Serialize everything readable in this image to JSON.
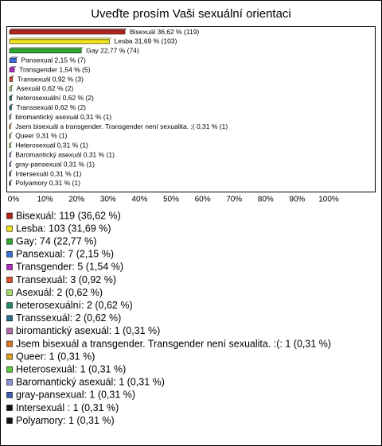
{
  "chart_data": {
    "type": "bar",
    "orientation": "horizontal",
    "title": "Uveďte prosím Vaši sexuální orientaci",
    "values": [
      36.62,
      31.69,
      22.77,
      2.15,
      1.54,
      0.92,
      0.62,
      0.62,
      0.62,
      0.31,
      0.31,
      0.31,
      0.31,
      0.31,
      0.31,
      0.31,
      0.31
    ],
    "value_labels": [
      "Bisexuál 36,62 % (119)",
      "Lesba 31,69 % (103)",
      "Gay 22,77 % (74)",
      "Pansexual 2,15 % (7)",
      "Transgender 1,54 % (5)",
      "Transexuál 0,92 % (3)",
      "Asexuál 0,62 % (2)",
      "heterosexuální 0,62 % (2)",
      "Transsexuál 0,62 % (2)",
      "biromantický asexuál 0,31 % (1)",
      "Jsem bisexuál a transgender. Transgender není sexualita. :( 0,31 % (1)",
      "Queer 0,31 % (1)",
      "Heterosexuál 0,31 % (1)",
      "Baromantický asexuál 0,31 % (1)",
      "gray-pansexual 0,31 % (1)",
      "Intersexuál  0,31 % (1)",
      "Polyamory 0,31 % (1)"
    ],
    "legend_labels": [
      "Bisexuál: 119 (36,62 %)",
      "Lesba: 103 (31,69 %)",
      "Gay: 74 (22,77 %)",
      "Pansexual: 7 (2,15 %)",
      "Transgender: 5 (1,54 %)",
      "Transexuál: 3 (0,92 %)",
      "Asexuál: 2 (0,62 %)",
      "heterosexuální: 2 (0,62 %)",
      "Transsexuál: 2 (0,62 %)",
      "biromantický asexuál: 1 (0,31 %)",
      "Jsem bisexuál a transgender. Transgender není sexualita. :(: 1 (0,31 %)",
      "Queer: 1 (0,31 %)",
      "Heterosexuál: 1 (0,31 %)",
      "Baromantický asexuál: 1 (0,31 %)",
      "gray-pansexual: 1 (0,31 %)",
      "Intersexuál : 1 (0,31 %)",
      "Polyamory: 1 (0,31 %)"
    ],
    "colors": [
      "#b3261e",
      "#f2e41c",
      "#2eaa2e",
      "#3b6fd6",
      "#b02fc0",
      "#e0502a",
      "#a8dc6a",
      "#27876a",
      "#2a6f8e",
      "#b86aa8",
      "#e07520",
      "#e0a21e",
      "#5ccf3c",
      "#8a95e0",
      "#3f5fae",
      "#111111",
      "#111111"
    ],
    "xlim": [
      0,
      100
    ],
    "xticks": [
      {
        "value": 0,
        "label": "0%"
      },
      {
        "value": 10,
        "label": "10%"
      },
      {
        "value": 20,
        "label": "20%"
      },
      {
        "value": 30,
        "label": "30%"
      },
      {
        "value": 40,
        "label": "40%"
      },
      {
        "value": 50,
        "label": "50%"
      },
      {
        "value": 60,
        "label": "60%"
      },
      {
        "value": 70,
        "label": "70%"
      },
      {
        "value": 80,
        "label": "80%"
      },
      {
        "value": 90,
        "label": "90%"
      },
      {
        "value": 100,
        "label": "100%"
      }
    ]
  }
}
